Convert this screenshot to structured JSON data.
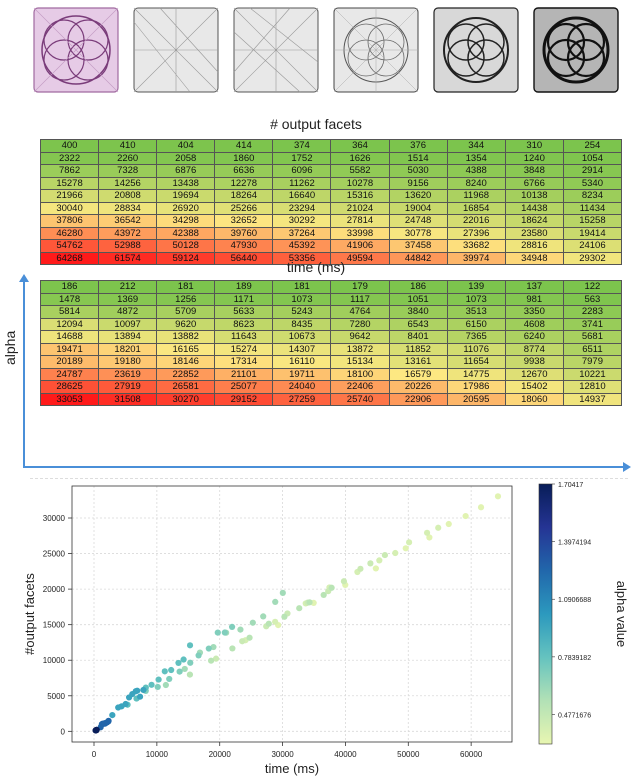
{
  "titles": {
    "facets": "# output facets",
    "time": "time (ms)",
    "alpha": "alpha"
  },
  "colors": {
    "accent_axis": "#4a8fd8",
    "facets_palette_start": "#7cc44d",
    "facets_palette_mid": "#fde882",
    "facets_palette_end": "#ff1a1a"
  },
  "tables": {
    "facets": {
      "rows": [
        [
          "400",
          "410",
          "404",
          "414",
          "374",
          "364",
          "376",
          "344",
          "310",
          "254"
        ],
        [
          "2322",
          "2260",
          "2058",
          "1860",
          "1752",
          "1626",
          "1514",
          "1354",
          "1240",
          "1054"
        ],
        [
          "7862",
          "7328",
          "6876",
          "6636",
          "6096",
          "5582",
          "5030",
          "4388",
          "3848",
          "2914"
        ],
        [
          "15278",
          "14256",
          "13438",
          "12278",
          "11262",
          "10278",
          "9156",
          "8240",
          "6766",
          "5340"
        ],
        [
          "21966",
          "20808",
          "19694",
          "18264",
          "16640",
          "15316",
          "13620",
          "11968",
          "10138",
          "8234"
        ],
        [
          "30040",
          "28834",
          "26920",
          "25266",
          "23294",
          "21024",
          "19004",
          "16854",
          "14438",
          "11434"
        ],
        [
          "37806",
          "36542",
          "34298",
          "32652",
          "30292",
          "27814",
          "24748",
          "22016",
          "18624",
          "15258"
        ],
        [
          "46280",
          "43972",
          "42388",
          "39760",
          "37264",
          "33998",
          "30778",
          "27396",
          "23580",
          "19414"
        ],
        [
          "54762",
          "52988",
          "50128",
          "47930",
          "45392",
          "41906",
          "37458",
          "33682",
          "28816",
          "24106"
        ],
        [
          "64268",
          "61574",
          "59124",
          "56440",
          "53356",
          "49594",
          "44842",
          "39974",
          "34948",
          "29302"
        ]
      ]
    },
    "time": {
      "rows": [
        [
          "186",
          "212",
          "181",
          "189",
          "181",
          "179",
          "186",
          "139",
          "137",
          "122"
        ],
        [
          "1478",
          "1369",
          "1256",
          "1171",
          "1073",
          "1117",
          "1051",
          "1073",
          "981",
          "563"
        ],
        [
          "5814",
          "4872",
          "5709",
          "5633",
          "5243",
          "4764",
          "3840",
          "3513",
          "3350",
          "2283"
        ],
        [
          "12094",
          "10097",
          "9620",
          "8623",
          "8435",
          "7280",
          "6543",
          "6150",
          "4608",
          "3741"
        ],
        [
          "14688",
          "13894",
          "13882",
          "11643",
          "10673",
          "9642",
          "8401",
          "7365",
          "6240",
          "5681"
        ],
        [
          "19471",
          "18201",
          "16165",
          "15274",
          "14307",
          "13872",
          "11852",
          "11076",
          "8774",
          "6511"
        ],
        [
          "20189",
          "19180",
          "18146",
          "17314",
          "16110",
          "15134",
          "13161",
          "11654",
          "9938",
          "7979"
        ],
        [
          "24787",
          "23619",
          "22852",
          "21101",
          "19711",
          "18100",
          "16579",
          "14775",
          "12670",
          "10221"
        ],
        [
          "28625",
          "27919",
          "26581",
          "25077",
          "24040",
          "22406",
          "20226",
          "17986",
          "15402",
          "12810"
        ],
        [
          "33053",
          "31508",
          "30270",
          "29152",
          "27259",
          "25740",
          "22906",
          "20595",
          "18060",
          "14937"
        ]
      ]
    }
  },
  "chart_data": {
    "type": "scatter",
    "xlabel": "time (ms)",
    "ylabel": "#output facets",
    "colorbar_label": "alpha value",
    "xlim": [
      -3500,
      66500
    ],
    "ylim": [
      -1500,
      34500
    ],
    "xticks": [
      0,
      10000,
      20000,
      30000,
      40000,
      50000,
      60000
    ],
    "yticks": [
      0,
      5000,
      10000,
      15000,
      20000,
      25000,
      30000
    ],
    "grid": true,
    "colorbar_ticks": [
      "1.70417",
      "1.3974194",
      "1.0906688",
      "0.7839182",
      "0.4771676"
    ],
    "colorbar_range": [
      0.32,
      1.70417
    ],
    "colormap": [
      "#e8f6b1",
      "#b2e1b6",
      "#65c3bf",
      "#2c99be",
      "#2167ab",
      "#253494",
      "#081d58"
    ],
    "points": [
      {
        "x": 400,
        "y": 186,
        "a": 1.7
      },
      {
        "x": 410,
        "y": 212,
        "a": 1.7
      },
      {
        "x": 404,
        "y": 181,
        "a": 1.7
      },
      {
        "x": 414,
        "y": 189,
        "a": 1.7
      },
      {
        "x": 374,
        "y": 181,
        "a": 1.7
      },
      {
        "x": 364,
        "y": 179,
        "a": 1.7
      },
      {
        "x": 376,
        "y": 186,
        "a": 1.7
      },
      {
        "x": 344,
        "y": 139,
        "a": 1.7
      },
      {
        "x": 310,
        "y": 137,
        "a": 1.7
      },
      {
        "x": 254,
        "y": 122,
        "a": 1.7
      },
      {
        "x": 2322,
        "y": 1478,
        "a": 1.25
      },
      {
        "x": 2260,
        "y": 1369,
        "a": 1.25
      },
      {
        "x": 2058,
        "y": 1256,
        "a": 1.25
      },
      {
        "x": 1860,
        "y": 1171,
        "a": 1.25
      },
      {
        "x": 1752,
        "y": 1073,
        "a": 1.25
      },
      {
        "x": 1626,
        "y": 1117,
        "a": 1.25
      },
      {
        "x": 1514,
        "y": 1051,
        "a": 1.25
      },
      {
        "x": 1354,
        "y": 1073,
        "a": 1.25
      },
      {
        "x": 1240,
        "y": 981,
        "a": 1.25
      },
      {
        "x": 1054,
        "y": 563,
        "a": 1.25
      },
      {
        "x": 7862,
        "y": 5814,
        "a": 0.95
      },
      {
        "x": 7328,
        "y": 4872,
        "a": 0.95
      },
      {
        "x": 6876,
        "y": 5709,
        "a": 0.95
      },
      {
        "x": 6636,
        "y": 5633,
        "a": 0.95
      },
      {
        "x": 6096,
        "y": 5243,
        "a": 0.95
      },
      {
        "x": 5582,
        "y": 4764,
        "a": 0.95
      },
      {
        "x": 5030,
        "y": 3840,
        "a": 0.95
      },
      {
        "x": 4388,
        "y": 3513,
        "a": 0.95
      },
      {
        "x": 3848,
        "y": 3350,
        "a": 0.95
      },
      {
        "x": 2914,
        "y": 2283,
        "a": 0.95
      },
      {
        "x": 15278,
        "y": 12094,
        "a": 0.8
      },
      {
        "x": 14256,
        "y": 10097,
        "a": 0.8
      },
      {
        "x": 13438,
        "y": 9620,
        "a": 0.8
      },
      {
        "x": 12278,
        "y": 8623,
        "a": 0.8
      },
      {
        "x": 11262,
        "y": 8435,
        "a": 0.8
      },
      {
        "x": 10278,
        "y": 7280,
        "a": 0.8
      },
      {
        "x": 9156,
        "y": 6543,
        "a": 0.8
      },
      {
        "x": 8240,
        "y": 6150,
        "a": 0.8
      },
      {
        "x": 6766,
        "y": 4608,
        "a": 0.8
      },
      {
        "x": 5340,
        "y": 3741,
        "a": 0.8
      },
      {
        "x": 21966,
        "y": 14688,
        "a": 0.7
      },
      {
        "x": 20808,
        "y": 13894,
        "a": 0.7
      },
      {
        "x": 19694,
        "y": 13882,
        "a": 0.7
      },
      {
        "x": 18264,
        "y": 11643,
        "a": 0.7
      },
      {
        "x": 16640,
        "y": 10673,
        "a": 0.7
      },
      {
        "x": 15316,
        "y": 9642,
        "a": 0.7
      },
      {
        "x": 13620,
        "y": 8401,
        "a": 0.7
      },
      {
        "x": 11968,
        "y": 7365,
        "a": 0.7
      },
      {
        "x": 10138,
        "y": 6240,
        "a": 0.7
      },
      {
        "x": 8234,
        "y": 5681,
        "a": 0.7
      },
      {
        "x": 30040,
        "y": 19471,
        "a": 0.6
      },
      {
        "x": 28834,
        "y": 18201,
        "a": 0.6
      },
      {
        "x": 26920,
        "y": 16165,
        "a": 0.6
      },
      {
        "x": 25266,
        "y": 15274,
        "a": 0.6
      },
      {
        "x": 23294,
        "y": 14307,
        "a": 0.6
      },
      {
        "x": 21024,
        "y": 13872,
        "a": 0.6
      },
      {
        "x": 19004,
        "y": 11852,
        "a": 0.6
      },
      {
        "x": 16854,
        "y": 11076,
        "a": 0.6
      },
      {
        "x": 14438,
        "y": 8774,
        "a": 0.6
      },
      {
        "x": 11434,
        "y": 6511,
        "a": 0.6
      },
      {
        "x": 37806,
        "y": 20189,
        "a": 0.52
      },
      {
        "x": 36542,
        "y": 19180,
        "a": 0.52
      },
      {
        "x": 34298,
        "y": 18146,
        "a": 0.52
      },
      {
        "x": 32652,
        "y": 17314,
        "a": 0.52
      },
      {
        "x": 30292,
        "y": 16110,
        "a": 0.52
      },
      {
        "x": 27814,
        "y": 15134,
        "a": 0.52
      },
      {
        "x": 24748,
        "y": 13161,
        "a": 0.52
      },
      {
        "x": 22016,
        "y": 11654,
        "a": 0.52
      },
      {
        "x": 18624,
        "y": 9938,
        "a": 0.52
      },
      {
        "x": 15258,
        "y": 7979,
        "a": 0.52
      },
      {
        "x": 46280,
        "y": 24787,
        "a": 0.45
      },
      {
        "x": 43972,
        "y": 23619,
        "a": 0.45
      },
      {
        "x": 42388,
        "y": 22852,
        "a": 0.45
      },
      {
        "x": 39760,
        "y": 21101,
        "a": 0.45
      },
      {
        "x": 37264,
        "y": 19711,
        "a": 0.45
      },
      {
        "x": 33998,
        "y": 18100,
        "a": 0.45
      },
      {
        "x": 30778,
        "y": 16579,
        "a": 0.45
      },
      {
        "x": 27396,
        "y": 14775,
        "a": 0.45
      },
      {
        "x": 23580,
        "y": 12670,
        "a": 0.45
      },
      {
        "x": 19414,
        "y": 10221,
        "a": 0.45
      },
      {
        "x": 54762,
        "y": 28625,
        "a": 0.4
      },
      {
        "x": 52988,
        "y": 27919,
        "a": 0.4
      },
      {
        "x": 50128,
        "y": 26581,
        "a": 0.4
      },
      {
        "x": 47930,
        "y": 25077,
        "a": 0.4
      },
      {
        "x": 45392,
        "y": 24040,
        "a": 0.4
      },
      {
        "x": 41906,
        "y": 22406,
        "a": 0.4
      },
      {
        "x": 37458,
        "y": 20226,
        "a": 0.4
      },
      {
        "x": 33682,
        "y": 17986,
        "a": 0.4
      },
      {
        "x": 28816,
        "y": 15402,
        "a": 0.4
      },
      {
        "x": 24106,
        "y": 12810,
        "a": 0.4
      },
      {
        "x": 64268,
        "y": 33053,
        "a": 0.35
      },
      {
        "x": 61574,
        "y": 31508,
        "a": 0.35
      },
      {
        "x": 59124,
        "y": 30270,
        "a": 0.35
      },
      {
        "x": 56440,
        "y": 29152,
        "a": 0.35
      },
      {
        "x": 53356,
        "y": 27259,
        "a": 0.35
      },
      {
        "x": 49594,
        "y": 25740,
        "a": 0.35
      },
      {
        "x": 44842,
        "y": 22906,
        "a": 0.35
      },
      {
        "x": 39974,
        "y": 20595,
        "a": 0.35
      },
      {
        "x": 34948,
        "y": 18060,
        "a": 0.35
      },
      {
        "x": 29302,
        "y": 14937,
        "a": 0.35
      }
    ]
  }
}
